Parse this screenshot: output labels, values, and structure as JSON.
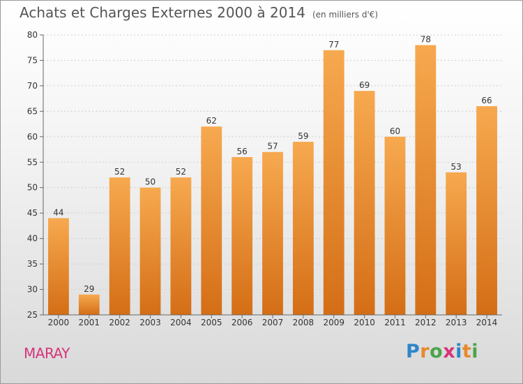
{
  "title": "Achats et Charges Externes 2000 à 2014",
  "unit": "(en milliers d'€)",
  "location": "MARAY",
  "logo": {
    "letters": [
      "P",
      "r",
      "o",
      "x",
      "i",
      "t",
      "i"
    ],
    "colors": [
      "#2e86c9",
      "#e8892b",
      "#4aa54a",
      "#d6347a",
      "#2e86c9",
      "#e8892b",
      "#4aa54a"
    ]
  },
  "colors": {
    "bar_top": "#f7a94f",
    "bar_bottom": "#d46e16",
    "grid": "#cfcfcf",
    "axis": "#666666"
  },
  "chart_data": {
    "type": "bar",
    "categories": [
      "2000",
      "2001",
      "2002",
      "2003",
      "2004",
      "2005",
      "2006",
      "2007",
      "2008",
      "2009",
      "2010",
      "2011",
      "2012",
      "2013",
      "2014"
    ],
    "values": [
      44,
      29,
      52,
      50,
      52,
      62,
      56,
      57,
      59,
      77,
      69,
      60,
      78,
      53,
      66
    ],
    "data_labels": [
      "44",
      "29",
      "52",
      "50",
      "52",
      "62",
      "56",
      "57",
      "59",
      "77",
      "69",
      "60",
      "78",
      "53",
      "66"
    ],
    "yticks": [
      "25",
      "30",
      "35",
      "40",
      "45",
      "50",
      "55",
      "60",
      "65",
      "70",
      "75",
      "80"
    ],
    "ylim": [
      25,
      80
    ],
    "grid": true,
    "legend": "none"
  }
}
